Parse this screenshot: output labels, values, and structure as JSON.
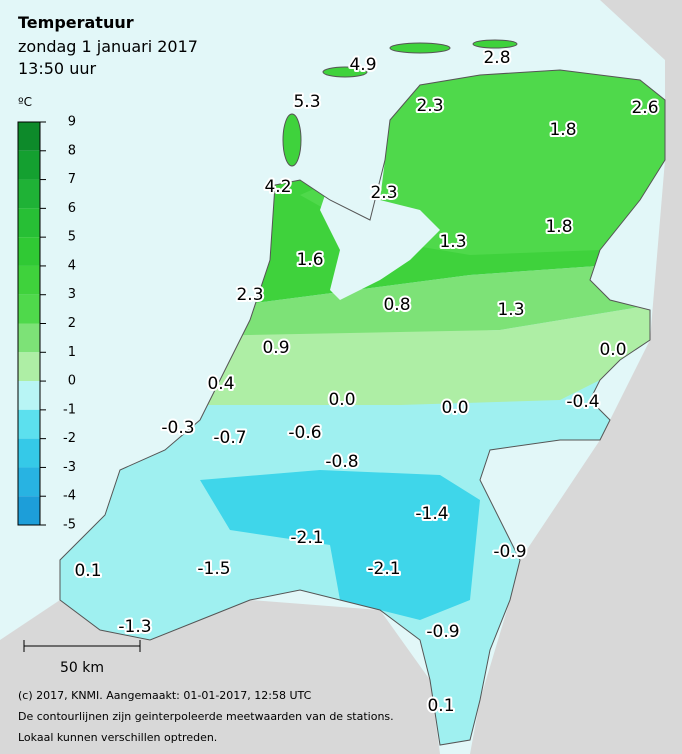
{
  "header": {
    "title": "Temperatuur",
    "subtitle": "zondag 1 januari 2017",
    "time": "13:50 uur"
  },
  "legend": {
    "unit": "ºC",
    "ticks": [
      9,
      8,
      7,
      6,
      5,
      4,
      3,
      2,
      1,
      0,
      -1,
      -2,
      -3,
      -4,
      -5
    ],
    "colors": [
      "#0d8a2a",
      "#14a030",
      "#1fb236",
      "#27bf35",
      "#30c934",
      "#3fd23c",
      "#4fd94b",
      "#7de277",
      "#aeeea5",
      "#b8f5f5",
      "#5ce0ee",
      "#35c9e8",
      "#28b3e2",
      "#1d9ed9"
    ]
  },
  "stations": {
    "values": [
      4.9,
      2.8,
      5.3,
      2.3,
      2.6,
      1.8,
      4.2,
      2.3,
      1.3,
      1.8,
      1.6,
      2.3,
      0.8,
      1.3,
      0.9,
      0.0,
      0.4,
      0.0,
      0.0,
      -0.4,
      -0.3,
      -0.7,
      -0.6,
      -0.8,
      -1.4,
      -2.1,
      -0.9,
      0.1,
      -1.5,
      -2.1,
      -1.3,
      -0.9,
      0.1
    ],
    "value_labels": [
      "4.9",
      "2.8",
      "5.3",
      "2.3",
      "2.6",
      "1.8",
      "4.2",
      "2.3",
      "1.3",
      "1.8",
      "1.6",
      "2.3",
      "0.8",
      "1.3",
      "0.9",
      "0.0",
      "0.4",
      "0.0",
      "0.0",
      "-0.4",
      "-0.3",
      "-0.7",
      "-0.6",
      "-0.8",
      "-1.4",
      "-2.1",
      "-0.9",
      "0.1",
      "-1.5",
      "-2.1",
      "-1.3",
      "-0.9",
      "0.1"
    ]
  },
  "scale_bar": "50 km",
  "footer": [
    "(c) 2017, KNMI. Aangemaakt: 01-01-2017, 12:58 UTC",
    "De contourlijnen zijn geinterpoleerde meetwaarden van de stations.",
    "Lokaal kunnen verschillen optreden."
  ]
}
